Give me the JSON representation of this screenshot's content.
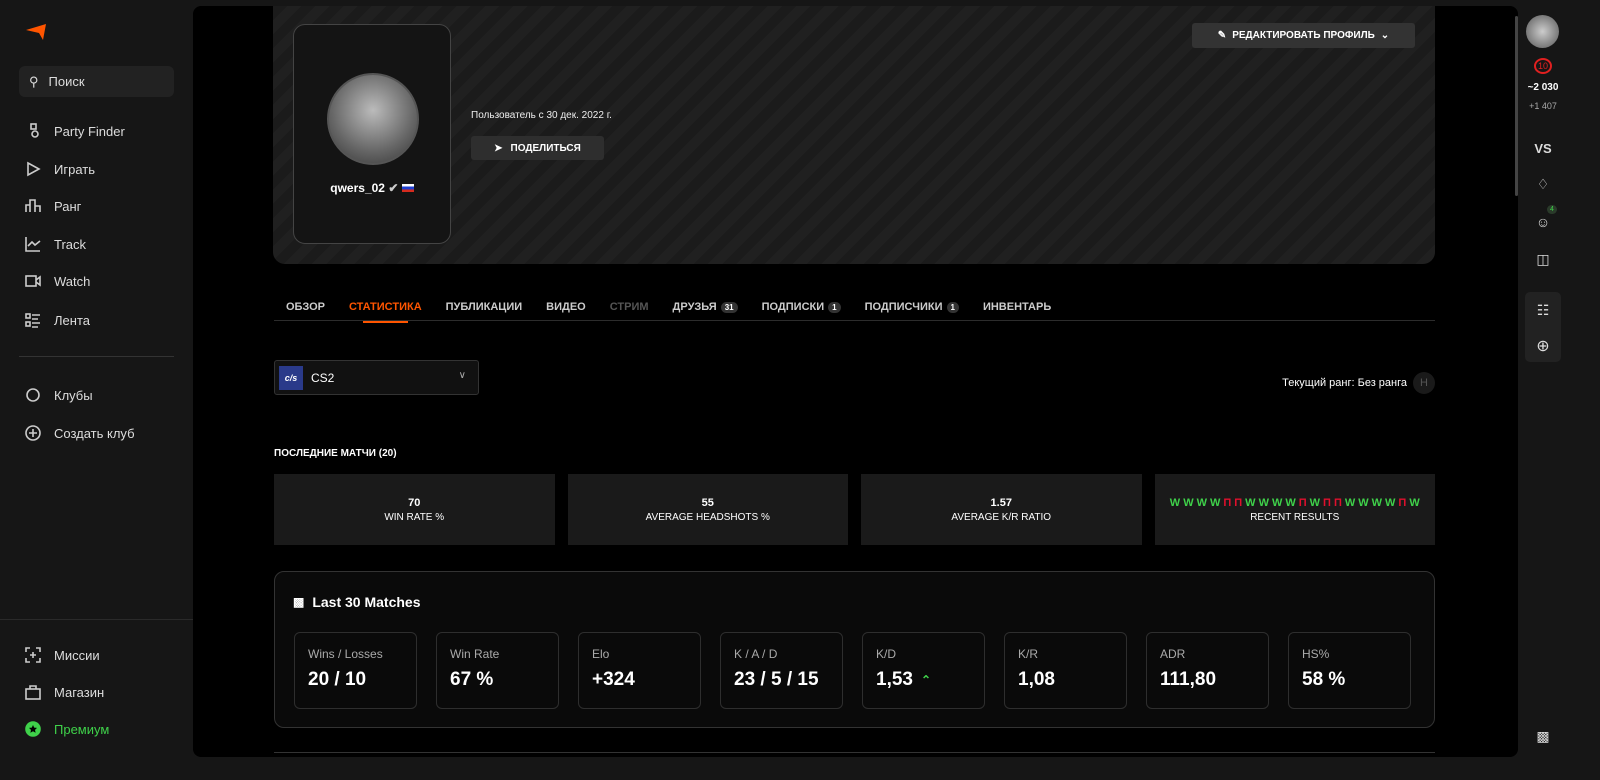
{
  "sidebar": {
    "search": "Поиск",
    "items": [
      {
        "label": "Party Finder",
        "icon": "party-finder-icon"
      },
      {
        "label": "Играть",
        "icon": "play-icon"
      },
      {
        "label": "Ранг",
        "icon": "rank-icon"
      },
      {
        "label": "Track",
        "icon": "track-icon"
      },
      {
        "label": "Watch",
        "icon": "video-icon"
      },
      {
        "label": "Лента",
        "icon": "feed-icon"
      }
    ],
    "clubs": [
      {
        "label": "Клубы"
      },
      {
        "label": "Создать клуб"
      }
    ],
    "bottom": [
      {
        "label": "Миссии"
      },
      {
        "label": "Магазин"
      },
      {
        "label": "Премиум",
        "color": "#3fd14a"
      }
    ]
  },
  "profile": {
    "username": "qwers_02",
    "since": "Пользователь с 30 дек. 2022 г.",
    "share": "ПОДЕЛИТЬСЯ",
    "edit": "РЕДАКТИРОВАТЬ ПРОФИЛЬ"
  },
  "tabs": [
    {
      "label": "ОБЗОР"
    },
    {
      "label": "СТАТИСТИКА",
      "active": true
    },
    {
      "label": "ПУБЛИКАЦИИ"
    },
    {
      "label": "ВИДЕО"
    },
    {
      "label": "СТРИМ",
      "disabled": true
    },
    {
      "label": "ДРУЗЬЯ",
      "badge": "31"
    },
    {
      "label": "ПОДПИСКИ",
      "badge": "1"
    },
    {
      "label": "ПОДПИСЧИКИ",
      "badge": "1"
    },
    {
      "label": "ИНВЕНТАРЬ"
    }
  ],
  "game": {
    "logo": "c/s",
    "selected": "CS2"
  },
  "rank": "Текущий ранг: Без ранга",
  "recent": {
    "title": "ПОСЛЕДНИЕ МАТЧИ (20)",
    "cards": [
      {
        "value": "70",
        "label": "WIN RATE %"
      },
      {
        "value": "55",
        "label": "AVERAGE HEADSHOTS %"
      },
      {
        "value": "1.57",
        "label": "AVERAGE K/R RATIO"
      }
    ],
    "results_label": "RECENT RESULTS",
    "results": [
      "W",
      "W",
      "W",
      "W",
      "П",
      "П",
      "W",
      "W",
      "W",
      "W",
      "П",
      "W",
      "П",
      "П",
      "W",
      "W",
      "W",
      "W",
      "П",
      "W"
    ]
  },
  "last30": {
    "title": "Last 30 Matches",
    "stats": [
      {
        "label": "Wins / Losses",
        "value": "20 / 10"
      },
      {
        "label": "Win Rate",
        "value": "67 %"
      },
      {
        "label": "Elo",
        "value": "+324"
      },
      {
        "label": "K / A / D",
        "value": "23 / 5 / 15"
      },
      {
        "label": "K/D",
        "value": "1,53",
        "trend": "up"
      },
      {
        "label": "K/R",
        "value": "1,08"
      },
      {
        "label": "ADR",
        "value": "111,80"
      },
      {
        "label": "HS%",
        "value": "58 %"
      }
    ]
  },
  "rightbar": {
    "level": "10",
    "elo": "~2 030",
    "elo_diff": "+1 407",
    "vs": "VS",
    "friends_badge": "4"
  },
  "colors": {
    "accent": "#ff5500",
    "win": "#3fd14a",
    "loss": "#e0102d"
  }
}
